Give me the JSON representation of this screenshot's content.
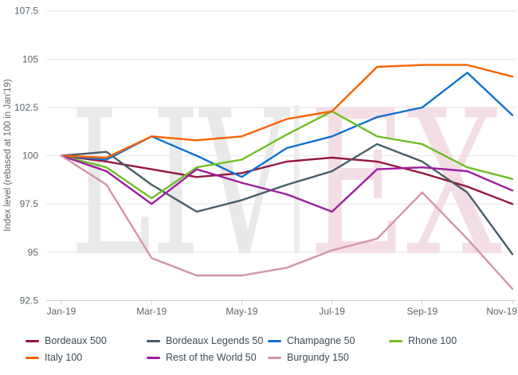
{
  "chart_data": {
    "type": "line",
    "title": "",
    "ylabel": "Index level (rebased at 100 in Jan'19)",
    "xlabel": "",
    "x_categories": [
      "Jan-19",
      "Feb-19",
      "Mar-19",
      "Apr-19",
      "May-19",
      "Jun-19",
      "Jul-19",
      "Aug-19",
      "Sep-19",
      "Oct-19",
      "Nov-19"
    ],
    "x_tick_labels": [
      "Jan-19",
      "Mar-19",
      "May-19",
      "Jul-19",
      "Sep-19",
      "Nov-19"
    ],
    "y_ticks": [
      107.5,
      105,
      102.5,
      100,
      97.5,
      95,
      92.5
    ],
    "ylim": [
      92.5,
      107.5
    ],
    "grid": true,
    "legend_position": "bottom",
    "series": [
      {
        "name": "Bordeaux 500",
        "color": "#941740",
        "values": [
          100,
          99.7,
          99.3,
          98.9,
          99.1,
          99.7,
          99.9,
          99.7,
          99.1,
          98.4,
          97.5
        ]
      },
      {
        "name": "Bordeaux Legends 50",
        "color": "#4a5d68",
        "values": [
          100,
          100.2,
          98.5,
          97.1,
          97.7,
          98.5,
          99.2,
          100.6,
          99.7,
          98.1,
          94.9
        ]
      },
      {
        "name": "Champagne 50",
        "color": "#1272d2",
        "values": [
          100,
          99.8,
          101.0,
          100.0,
          98.9,
          100.4,
          101.0,
          102.0,
          102.5,
          104.3,
          102.1
        ]
      },
      {
        "name": "Rhone 100",
        "color": "#6fbf26",
        "values": [
          100,
          99.4,
          97.8,
          99.4,
          99.8,
          101.1,
          102.3,
          101.0,
          100.6,
          99.4,
          98.8
        ]
      },
      {
        "name": "Italy 100",
        "color": "#f96302",
        "values": [
          100,
          99.9,
          101.0,
          100.8,
          101.0,
          101.9,
          102.3,
          104.6,
          104.7,
          104.7,
          104.1
        ]
      },
      {
        "name": "Rest of the World 50",
        "color": "#9c1f9e",
        "values": [
          100,
          99.2,
          97.5,
          99.3,
          98.6,
          98.0,
          97.1,
          99.3,
          99.4,
          99.2,
          98.2
        ]
      },
      {
        "name": "Burgundy 150",
        "color": "#d295a5",
        "values": [
          100,
          98.5,
          94.7,
          93.8,
          93.8,
          94.2,
          95.1,
          95.7,
          98.1,
          95.7,
          93.1
        ]
      }
    ],
    "legend_order": [
      "Bordeaux 500",
      "Bordeaux Legends 50",
      "Champagne 50",
      "Rhone 100",
      "Italy 100",
      "Rest of the World 50",
      "Burgundy 150"
    ]
  },
  "watermark": {
    "part1": "LIV",
    "part2": "EX",
    "color1": "#e9e9e9",
    "bar_color": "#ededed",
    "color2": "#f4dee5"
  },
  "colors": {
    "gridline": "#e6e6e6",
    "axis_line": "#cdd1d4",
    "axis_text": "#5b666e",
    "legend_text": "#3e4a54",
    "background": "#ffffff"
  }
}
